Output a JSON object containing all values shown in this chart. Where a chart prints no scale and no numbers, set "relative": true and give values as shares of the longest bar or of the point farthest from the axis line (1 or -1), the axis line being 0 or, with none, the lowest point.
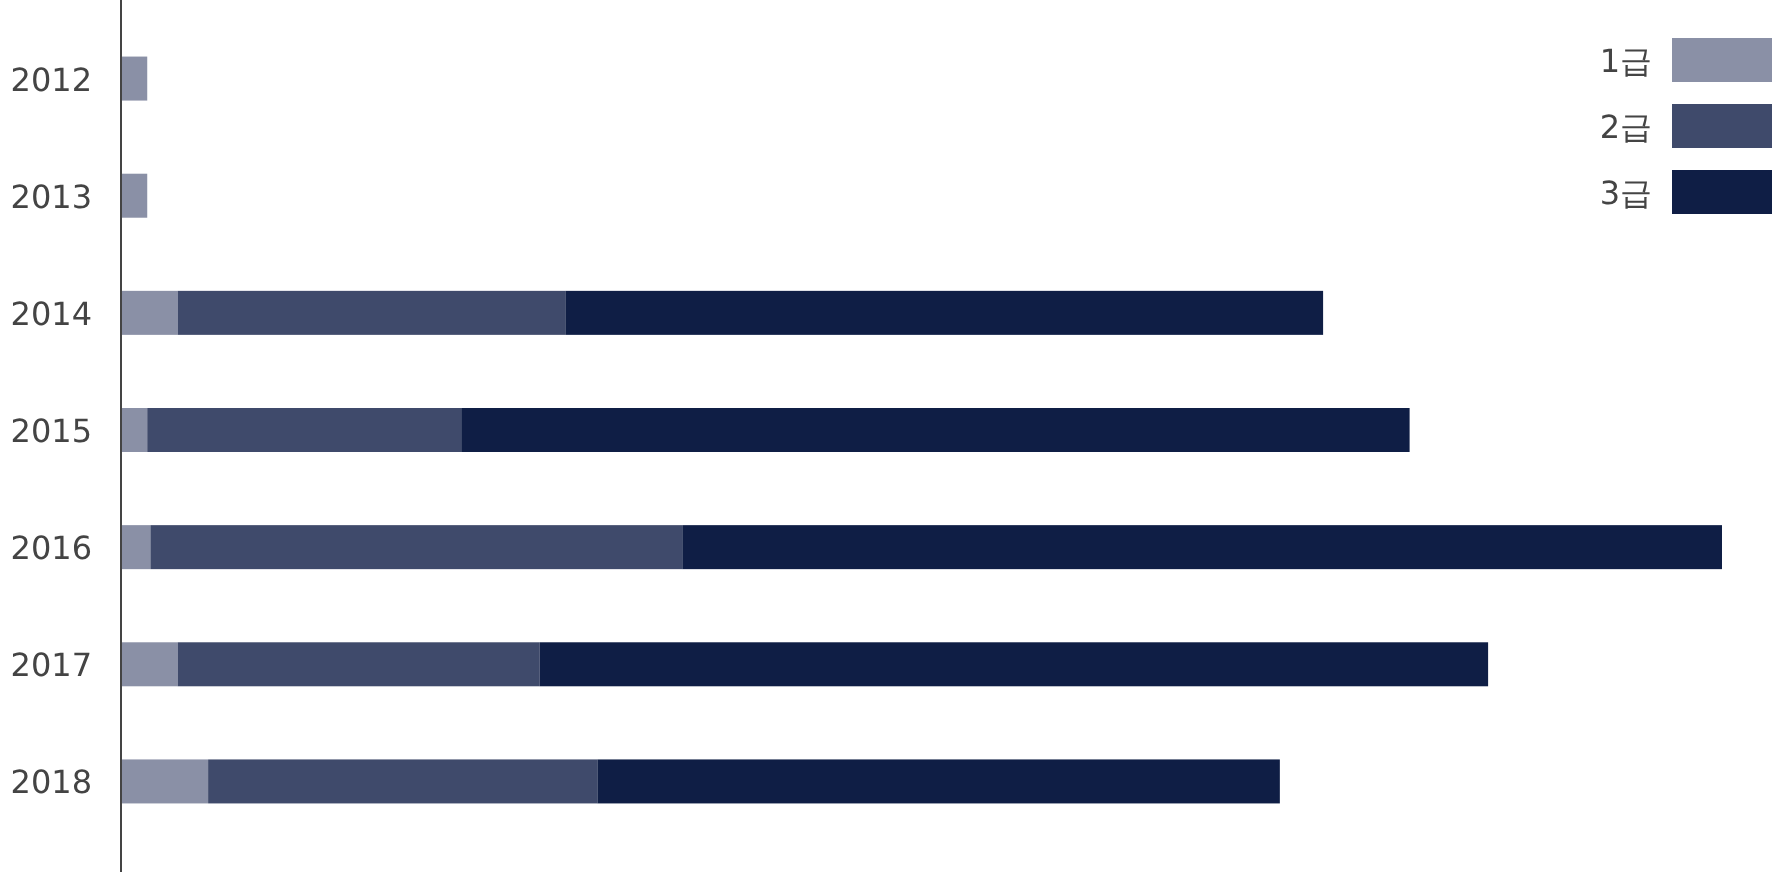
{
  "chart_data": {
    "type": "bar",
    "orientation": "horizontal",
    "stacked": true,
    "relative": true,
    "legend": "top right",
    "categories": [
      "2012",
      "2013",
      "2014",
      "2015",
      "2016",
      "2017",
      "2018"
    ],
    "series": [
      {
        "name": "1급",
        "color": "#8a90a6",
        "values": [
          0.017,
          0.017,
          0.036,
          0.017,
          0.019,
          0.036,
          0.055
        ]
      },
      {
        "name": "2급",
        "color": "#3f4a6b",
        "values": [
          0,
          0,
          0.242,
          0.196,
          0.332,
          0.226,
          0.243
        ]
      },
      {
        "name": "3급",
        "color": "#0f1e45",
        "values": [
          0,
          0,
          0.473,
          0.592,
          0.649,
          0.592,
          0.426
        ]
      }
    ]
  }
}
